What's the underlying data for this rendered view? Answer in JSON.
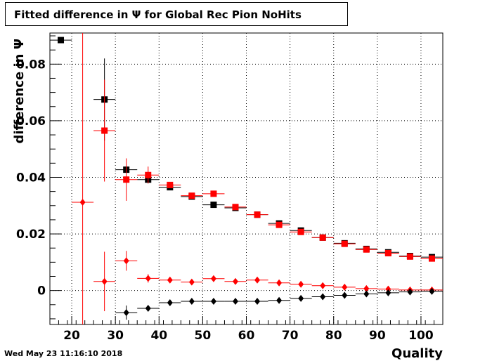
{
  "title": "Fitted difference in  Ψ  for Global Rec Pion NoHits",
  "timestamp": "Wed May 23 11:16:10 2018",
  "chart_data": {
    "type": "scatter",
    "title": "Fitted difference in  Ψ  for Global Rec Pion NoHits",
    "xlabel": "Quality",
    "ylabel": "difference in  Ψ",
    "xlim": [
      15,
      105
    ],
    "ylim": [
      -0.012,
      0.091
    ],
    "xticks": [
      20,
      30,
      40,
      50,
      60,
      70,
      80,
      90,
      100
    ],
    "yticks": [
      0,
      0.02,
      0.04,
      0.06,
      0.08
    ],
    "ytick_labels": [
      "0",
      "0.02",
      "0.04",
      "0.06",
      "0.08"
    ],
    "grid": true,
    "colors": {
      "black": "#000000",
      "red": "#ff0000"
    },
    "series": [
      {
        "marker": "square",
        "color": "#000000",
        "points": [
          {
            "x": 17.5,
            "y": 0.0885,
            "ey": 0
          },
          {
            "x": 27.5,
            "y": 0.0675,
            "ey": 0.0145
          },
          {
            "x": 32.5,
            "y": 0.0427,
            "ey": 0.001
          },
          {
            "x": 37.5,
            "y": 0.0392,
            "ey": 0.0005
          },
          {
            "x": 42.5,
            "y": 0.0365,
            "ey": 0.0005
          },
          {
            "x": 47.5,
            "y": 0.0332,
            "ey": 0.0003
          },
          {
            "x": 52.5,
            "y": 0.0303,
            "ey": 0.0003
          },
          {
            "x": 57.5,
            "y": 0.0292,
            "ey": 0.0003
          },
          {
            "x": 62.5,
            "y": 0.0268,
            "ey": 0.0003
          },
          {
            "x": 67.5,
            "y": 0.0237,
            "ey": 0.0003
          },
          {
            "x": 72.5,
            "y": 0.0212,
            "ey": 0.0003
          },
          {
            "x": 77.5,
            "y": 0.0187,
            "ey": 0.0003
          },
          {
            "x": 82.5,
            "y": 0.0167,
            "ey": 0.0003
          },
          {
            "x": 87.5,
            "y": 0.0147,
            "ey": 0.0003
          },
          {
            "x": 92.5,
            "y": 0.0135,
            "ey": 0.0003
          },
          {
            "x": 97.5,
            "y": 0.0122,
            "ey": 0.0003
          },
          {
            "x": 102.5,
            "y": 0.0118,
            "ey": 0.0003
          }
        ]
      },
      {
        "marker": "square",
        "color": "#ff0000",
        "points": [
          {
            "x": 27.5,
            "y": 0.0565,
            "ey": 0.018
          },
          {
            "x": 32.5,
            "y": 0.0392,
            "ey": 0.0075
          },
          {
            "x": 37.5,
            "y": 0.0408,
            "ey": 0.003
          },
          {
            "x": 42.5,
            "y": 0.0373,
            "ey": 0.001
          },
          {
            "x": 47.5,
            "y": 0.0335,
            "ey": 0.0005
          },
          {
            "x": 52.5,
            "y": 0.0342,
            "ey": 0.0004
          },
          {
            "x": 57.5,
            "y": 0.0295,
            "ey": 0.0003
          },
          {
            "x": 62.5,
            "y": 0.0268,
            "ey": 0.0003
          },
          {
            "x": 67.5,
            "y": 0.0232,
            "ey": 0.0003
          },
          {
            "x": 72.5,
            "y": 0.0207,
            "ey": 0.0003
          },
          {
            "x": 77.5,
            "y": 0.0187,
            "ey": 0.0003
          },
          {
            "x": 82.5,
            "y": 0.0165,
            "ey": 0.0003
          },
          {
            "x": 87.5,
            "y": 0.0145,
            "ey": 0.0003
          },
          {
            "x": 92.5,
            "y": 0.0132,
            "ey": 0.0003
          },
          {
            "x": 97.5,
            "y": 0.012,
            "ey": 0.0003
          },
          {
            "x": 102.5,
            "y": 0.0113,
            "ey": 0.0003
          }
        ]
      },
      {
        "marker": "diamond",
        "color": "#ff0000",
        "points": [
          {
            "x": 22.5,
            "y": 0.0312,
            "ey": 0.098
          },
          {
            "x": 27.5,
            "y": 0.0032,
            "ey": 0.0105
          },
          {
            "x": 32.5,
            "y": 0.0105,
            "ey": 0.0035
          },
          {
            "x": 37.5,
            "y": 0.0043,
            "ey": 0.0015
          },
          {
            "x": 42.5,
            "y": 0.0037,
            "ey": 0.0006
          },
          {
            "x": 47.5,
            "y": 0.003,
            "ey": 0.0004
          },
          {
            "x": 52.5,
            "y": 0.0042,
            "ey": 0.0004
          },
          {
            "x": 57.5,
            "y": 0.0032,
            "ey": 0.0003
          },
          {
            "x": 62.5,
            "y": 0.0037,
            "ey": 0.0003
          },
          {
            "x": 67.5,
            "y": 0.0027,
            "ey": 0.0003
          },
          {
            "x": 72.5,
            "y": 0.0022,
            "ey": 0.0003
          },
          {
            "x": 77.5,
            "y": 0.0017,
            "ey": 0.0003
          },
          {
            "x": 82.5,
            "y": 0.0012,
            "ey": 0.0003
          },
          {
            "x": 87.5,
            "y": 0.0007,
            "ey": 0.0003
          },
          {
            "x": 92.5,
            "y": 0.0005,
            "ey": 0.0003
          },
          {
            "x": 97.5,
            "y": 0.0002,
            "ey": 0.0003
          },
          {
            "x": 102.5,
            "y": 0.0002,
            "ey": 0.0003
          }
        ]
      },
      {
        "marker": "diamond",
        "color": "#000000",
        "points": [
          {
            "x": 32.5,
            "y": -0.0078,
            "ey": 0.0025
          },
          {
            "x": 37.5,
            "y": -0.0063,
            "ey": 0.001
          },
          {
            "x": 42.5,
            "y": -0.0043,
            "ey": 0.0005
          },
          {
            "x": 47.5,
            "y": -0.0038,
            "ey": 0.0003
          },
          {
            "x": 52.5,
            "y": -0.0038,
            "ey": 0.0003
          },
          {
            "x": 57.5,
            "y": -0.0038,
            "ey": 0.0003
          },
          {
            "x": 62.5,
            "y": -0.0038,
            "ey": 0.0003
          },
          {
            "x": 67.5,
            "y": -0.0035,
            "ey": 0.0003
          },
          {
            "x": 72.5,
            "y": -0.0028,
            "ey": 0.0003
          },
          {
            "x": 77.5,
            "y": -0.0022,
            "ey": 0.0003
          },
          {
            "x": 82.5,
            "y": -0.0017,
            "ey": 0.0003
          },
          {
            "x": 87.5,
            "y": -0.0012,
            "ey": 0.0003
          },
          {
            "x": 92.5,
            "y": -0.0008,
            "ey": 0.0003
          },
          {
            "x": 97.5,
            "y": -0.0005,
            "ey": 0.0003
          },
          {
            "x": 102.5,
            "y": -0.0003,
            "ey": 0.0003
          }
        ]
      }
    ]
  }
}
